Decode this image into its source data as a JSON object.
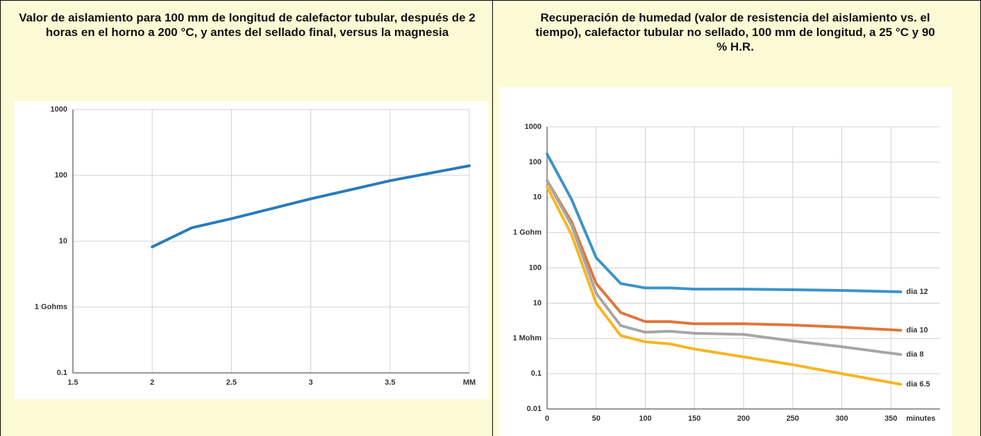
{
  "chart_data": [
    {
      "type": "line",
      "title": "Valor de aislamiento para 100 mm de longitud de calefactor tubular, después de 2 horas en el horno a 200 °C, y antes del sellado final, versus la magnesia",
      "x": [
        2,
        2.25,
        2.5,
        3,
        3.5,
        4
      ],
      "series": [
        {
          "color": "#2b7bba",
          "values": [
            8.2,
            16,
            22,
            44,
            83,
            140
          ]
        }
      ],
      "xlim": [
        1.5,
        4
      ],
      "xticks": [
        1.5,
        2,
        2.5,
        3,
        3.5,
        {
          "value": 4,
          "label": "MM"
        }
      ],
      "ylim": [
        0.1,
        1000
      ],
      "yticks": [
        0.1,
        {
          "value": 1,
          "label": "1 Gohms"
        },
        10,
        100,
        1000
      ],
      "log_y": true,
      "grid": true
    },
    {
      "type": "line",
      "title": "Recuperación de humedad (valor de resistencia del aislamiento vs. el tiempo), calefactor tubular no sellado, 100 mm de longitud, a 25 °C y 90 % H.R.",
      "x_label": "minutes",
      "x": [
        0,
        25,
        50,
        75,
        100,
        125,
        150,
        200,
        250,
        300,
        360
      ],
      "series": [
        {
          "name": "dia 12",
          "color": "#3d93c8",
          "values": [
            170000,
            8700,
            195,
            36,
            27,
            27,
            25,
            25,
            24,
            23,
            21
          ]
        },
        {
          "name": "dia 10",
          "color": "#e0763a",
          "values": [
            30000,
            2000,
            36,
            5.4,
            3,
            3,
            2.6,
            2.6,
            2.4,
            2.1,
            1.7
          ]
        },
        {
          "name": "dia 8",
          "color": "#a6a6a6",
          "values": [
            30000,
            1600,
            19,
            2.3,
            1.5,
            1.6,
            1.4,
            1.3,
            0.85,
            0.58,
            0.35
          ]
        },
        {
          "name": "dia 6.5",
          "color": "#f6b622",
          "values": [
            20000,
            870,
            10,
            1.2,
            0.8,
            0.7,
            0.5,
            0.3,
            0.18,
            0.1,
            0.05
          ]
        }
      ],
      "xlim": [
        0,
        400
      ],
      "xticks": [
        0,
        50,
        100,
        150,
        200,
        250,
        300,
        350
      ],
      "ylim": [
        0.01,
        1000000
      ],
      "yticks": [
        0.01,
        0.1,
        {
          "value": 1,
          "label": "1 Mohm"
        },
        10,
        100,
        {
          "value": 1000,
          "label": "1 Gohm"
        },
        {
          "value": 10000,
          "label": "10"
        },
        {
          "value": 100000,
          "label": "100"
        },
        {
          "value": 1000000,
          "label": "1000"
        }
      ],
      "log_y": true,
      "grid": true
    }
  ]
}
